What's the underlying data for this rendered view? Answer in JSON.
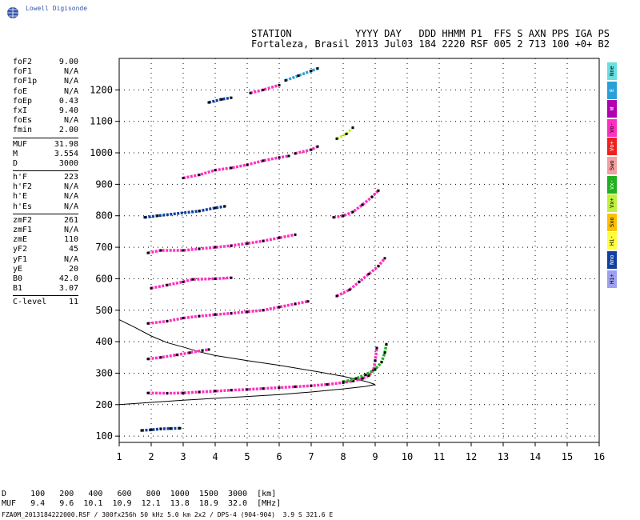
{
  "logo": {
    "text": "Lowell Digisonde"
  },
  "header": {
    "line1": "STATION           YYYY DAY   DDD HHMM P1  FFS S AXN PPS IGA PS",
    "line2": "Fortaleza, Brasil 2013 Jul03 184 2220 RSF 005 2 713 100 +0+ B2"
  },
  "params": [
    {
      "name": "foF2",
      "value": "9.00"
    },
    {
      "name": "foF1",
      "value": "N/A"
    },
    {
      "name": "foF1p",
      "value": "N/A"
    },
    {
      "name": "foE",
      "value": "N/A"
    },
    {
      "name": "foEp",
      "value": "0.43"
    },
    {
      "name": "fxI",
      "value": "9.40"
    },
    {
      "name": "foEs",
      "value": "N/A"
    },
    {
      "name": "fmin",
      "value": "2.00"
    },
    {
      "sep": true
    },
    {
      "name": "MUF",
      "value": "31.98"
    },
    {
      "name": "M",
      "value": "3.554"
    },
    {
      "name": "D",
      "value": "3000"
    },
    {
      "sep": true
    },
    {
      "name": "h'F",
      "value": "223"
    },
    {
      "name": "h'F2",
      "value": "N/A"
    },
    {
      "name": "h'E",
      "value": "N/A"
    },
    {
      "name": "h'Es",
      "value": "N/A"
    },
    {
      "sep": true
    },
    {
      "name": "zmF2",
      "value": "261"
    },
    {
      "name": "zmF1",
      "value": "N/A"
    },
    {
      "name": "zmE",
      "value": "110"
    },
    {
      "name": "yF2",
      "value": "45"
    },
    {
      "name": "yF1",
      "value": "N/A"
    },
    {
      "name": "yE",
      "value": "20"
    },
    {
      "name": "B0",
      "value": "42.0"
    },
    {
      "name": "B1",
      "value": "3.07"
    },
    {
      "sep": true
    },
    {
      "name": "C-level",
      "value": "11"
    }
  ],
  "legend": [
    {
      "label": "Nne",
      "color": "#66e0e0"
    },
    {
      "label": "E",
      "color": "#2a9fd8"
    },
    {
      "label": "W",
      "color": "#b000b0"
    },
    {
      "label": "Vo-",
      "color": "#ff30c0"
    },
    {
      "label": "Vo+",
      "color": "#ee2020"
    },
    {
      "label": "Swo",
      "color": "#f4a0a0"
    },
    {
      "label": "Vx-",
      "color": "#20b020"
    },
    {
      "label": "Vx+",
      "color": "#c0f040"
    },
    {
      "label": "Sxo",
      "color": "#ffc000"
    },
    {
      "label": "Hi-",
      "color": "#ffff40"
    },
    {
      "label": "Nno",
      "color": "#1040a0"
    },
    {
      "label": "Hi+",
      "color": "#a0a0f0"
    }
  ],
  "chart_data": {
    "type": "scatter",
    "xlim": [
      1,
      16
    ],
    "ylim": [
      80,
      1300
    ],
    "x_ticks": [
      "1",
      "2",
      "3",
      "4",
      "5",
      "6",
      "7",
      "8",
      "9",
      "10",
      "11",
      "12",
      "13",
      "14",
      "15",
      "16"
    ],
    "y_ticks": [
      "100",
      "200",
      "300",
      "400",
      "500",
      "600",
      "700",
      "800",
      "900",
      "1000",
      "1100",
      "1200"
    ],
    "grid": true,
    "traces": [
      {
        "name": "main-echo",
        "color": "#ff30c0",
        "points": [
          [
            1.9,
            237
          ],
          [
            2.5,
            236
          ],
          [
            3,
            237
          ],
          [
            3.5,
            240
          ],
          [
            4,
            243
          ],
          [
            4.5,
            246
          ],
          [
            5,
            248
          ],
          [
            5.5,
            251
          ],
          [
            6,
            254
          ],
          [
            6.5,
            257
          ],
          [
            7,
            260
          ],
          [
            7.5,
            264
          ],
          [
            8,
            270
          ],
          [
            8.3,
            275
          ],
          [
            8.6,
            283
          ],
          [
            8.8,
            292
          ],
          [
            8.95,
            310
          ],
          [
            9.0,
            340
          ],
          [
            9.05,
            380
          ]
        ]
      },
      {
        "name": "x-echo",
        "color": "#20b020",
        "points": [
          [
            8.0,
            272
          ],
          [
            8.4,
            283
          ],
          [
            8.7,
            295
          ],
          [
            9.0,
            312
          ],
          [
            9.2,
            335
          ],
          [
            9.3,
            365
          ],
          [
            9.35,
            392
          ]
        ]
      },
      {
        "name": "e-echo",
        "color": "#1040a0",
        "points": [
          [
            1.7,
            118
          ],
          [
            2,
            120
          ],
          [
            2.3,
            123
          ],
          [
            2.6,
            124
          ],
          [
            2.9,
            125
          ]
        ]
      },
      {
        "name": "echo-340",
        "color": "#ff30c0",
        "points": [
          [
            1.9,
            345
          ],
          [
            2.3,
            350
          ],
          [
            2.8,
            358
          ],
          [
            3.2,
            365
          ],
          [
            3.6,
            372
          ],
          [
            3.8,
            375
          ]
        ]
      },
      {
        "name": "echo-470",
        "color": "#ff30c0",
        "points": [
          [
            1.9,
            458
          ],
          [
            2.5,
            465
          ],
          [
            3,
            475
          ],
          [
            3.5,
            481
          ],
          [
            4,
            486
          ],
          [
            4.5,
            490
          ],
          [
            5,
            495
          ],
          [
            5.5,
            500
          ],
          [
            6,
            510
          ],
          [
            6.5,
            520
          ],
          [
            6.9,
            528
          ]
        ]
      },
      {
        "name": "echo-575",
        "color": "#ff30c0",
        "points": [
          [
            2,
            570
          ],
          [
            2.5,
            580
          ],
          [
            3,
            590
          ],
          [
            3.3,
            598
          ],
          [
            4,
            600
          ],
          [
            4.5,
            603
          ]
        ]
      },
      {
        "name": "echo-550-hi",
        "color": "#ff30c0",
        "points": [
          [
            7.8,
            545
          ],
          [
            8.2,
            565
          ],
          [
            8.5,
            590
          ],
          [
            8.8,
            615
          ],
          [
            9.1,
            640
          ],
          [
            9.3,
            665
          ]
        ]
      },
      {
        "name": "echo-690",
        "color": "#ff30c0",
        "points": [
          [
            1.9,
            682
          ],
          [
            2.3,
            690
          ],
          [
            3,
            690
          ],
          [
            3.5,
            695
          ],
          [
            4,
            700
          ],
          [
            4.5,
            705
          ],
          [
            5,
            712
          ],
          [
            5.5,
            720
          ],
          [
            6,
            730
          ],
          [
            6.5,
            740
          ]
        ]
      },
      {
        "name": "echo-800-hi",
        "color": "#ff30c0",
        "points": [
          [
            7.7,
            795
          ],
          [
            8,
            800
          ],
          [
            8.3,
            812
          ],
          [
            8.6,
            835
          ],
          [
            8.9,
            860
          ],
          [
            9.1,
            880
          ]
        ]
      },
      {
        "name": "echo-800",
        "color": "#1040a0",
        "points": [
          [
            1.8,
            795
          ],
          [
            2.2,
            800
          ],
          [
            3.5,
            815
          ],
          [
            4,
            825
          ],
          [
            4.3,
            830
          ]
        ]
      },
      {
        "name": "echo-920",
        "color": "#ff30c0",
        "points": [
          [
            3,
            920
          ],
          [
            3.5,
            930
          ],
          [
            4,
            945
          ],
          [
            4.5,
            952
          ],
          [
            5,
            962
          ],
          [
            5.5,
            975
          ],
          [
            6,
            985
          ],
          [
            6.3,
            990
          ]
        ]
      },
      {
        "name": "echo-1000",
        "color": "#ff30c0",
        "points": [
          [
            6.5,
            998
          ],
          [
            7,
            1010
          ],
          [
            7.2,
            1020
          ]
        ]
      },
      {
        "name": "echo-1050-hi",
        "color": "#c0f040",
        "points": [
          [
            7.8,
            1045
          ],
          [
            8.1,
            1060
          ],
          [
            8.3,
            1080
          ]
        ]
      },
      {
        "name": "echo-1160",
        "color": "#1040a0",
        "points": [
          [
            3.8,
            1160
          ],
          [
            4.2,
            1170
          ],
          [
            4.5,
            1175
          ]
        ]
      },
      {
        "name": "echo-1200",
        "color": "#ff30c0",
        "points": [
          [
            5.1,
            1190
          ],
          [
            5.5,
            1200
          ],
          [
            6,
            1215
          ]
        ]
      },
      {
        "name": "echo-1250",
        "color": "#2a9fd8",
        "points": [
          [
            6.2,
            1230
          ],
          [
            6.6,
            1245
          ],
          [
            7,
            1260
          ],
          [
            7.2,
            1268
          ]
        ]
      }
    ],
    "curves": [
      {
        "name": "profile-upper",
        "points": [
          [
            1,
            470
          ],
          [
            1.5,
            445
          ],
          [
            2,
            418
          ],
          [
            2.5,
            397
          ],
          [
            3,
            383
          ],
          [
            3.5,
            368
          ],
          [
            4,
            356
          ],
          [
            5,
            340
          ],
          [
            6,
            325
          ],
          [
            7,
            308
          ],
          [
            8,
            290
          ],
          [
            8.7,
            274
          ],
          [
            9.0,
            264
          ]
        ]
      },
      {
        "name": "profile-lower",
        "points": [
          [
            1,
            200
          ],
          [
            2,
            207
          ],
          [
            3,
            214
          ],
          [
            4,
            220
          ],
          [
            5,
            226
          ],
          [
            6,
            232
          ],
          [
            7,
            240
          ],
          [
            8,
            250
          ],
          [
            8.7,
            258
          ],
          [
            9.0,
            264
          ]
        ]
      }
    ]
  },
  "muf_table": {
    "line1": "D     100   200   400   600   800  1000  1500  3000  [km]",
    "line2": "MUF   9.4   9.6  10.1  10.9  12.1  13.8  18.9  32.0  [MHz]"
  },
  "footer": {
    "text": "FZA0M_2013184222000.RSF / 300fx256h 50 kHz 5.0 km 2x2 / DPS-4 (904-904)  3.9 S 321.6 E"
  }
}
